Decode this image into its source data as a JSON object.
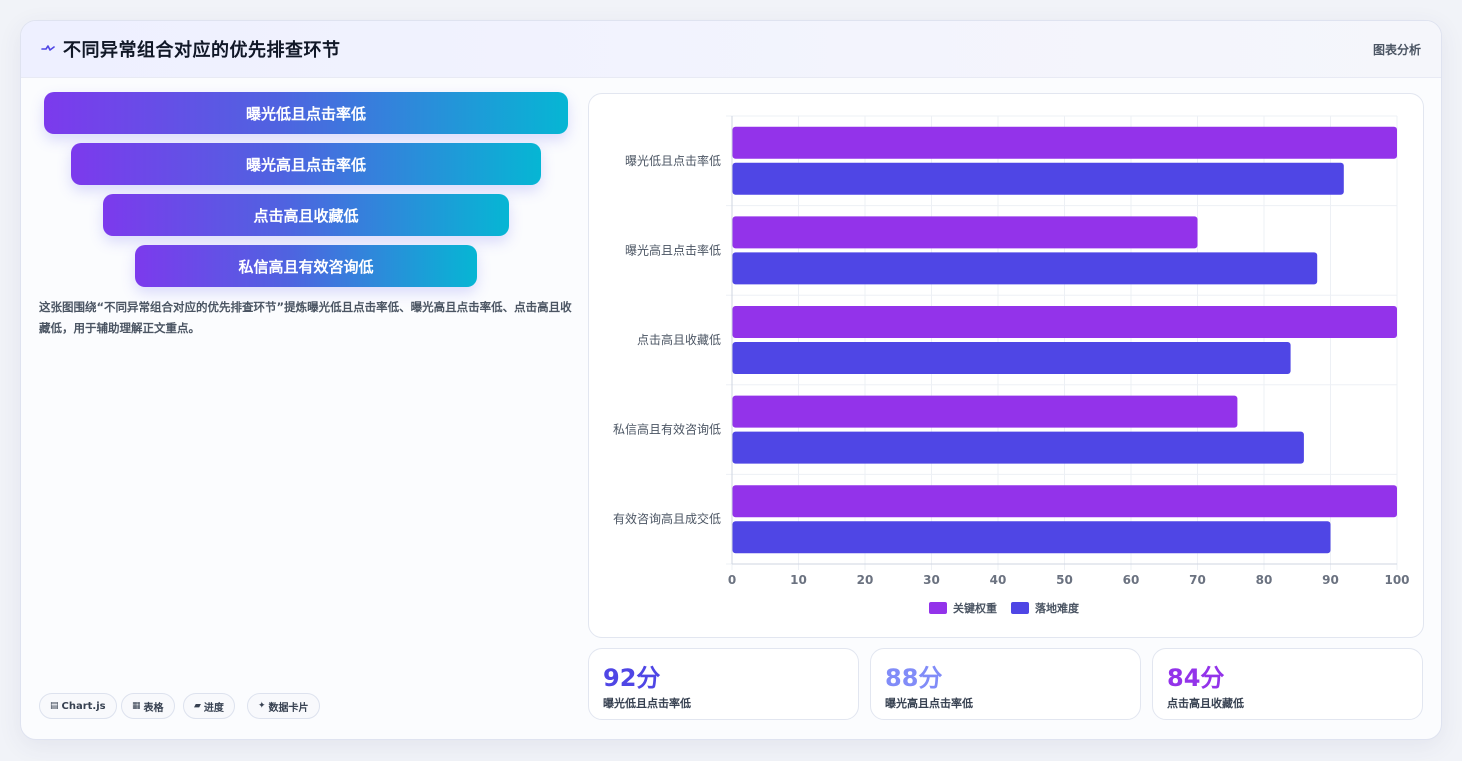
{
  "header": {
    "title": "不同异常组合对应的优先排查环节",
    "tag": "图表分析",
    "icon": "pulse-icon"
  },
  "funnel": {
    "items": [
      {
        "label": "曝光低且点击率低"
      },
      {
        "label": "曝光高且点击率低"
      },
      {
        "label": "点击高且收藏低"
      },
      {
        "label": "私信高且有效咨询低"
      }
    ]
  },
  "description": "这张图围绕“不同异常组合对应的优先排查环节”提炼曝光低且点击率低、曝光高且点击率低、点击高且收藏低，用于辅助理解正文重点。",
  "chips": [
    {
      "icon": "▤",
      "label": "Chart.js"
    },
    {
      "icon": "▦",
      "label": "表格"
    },
    {
      "icon": "▰",
      "label": "进度"
    },
    {
      "icon": "✦",
      "label": "数据卡片"
    }
  ],
  "chart_data": {
    "type": "bar",
    "orientation": "horizontal",
    "categories": [
      "曝光低且点击率低",
      "曝光高且点击率低",
      "点击高且收藏低",
      "私信高且有效咨询低",
      "有效咨询高且成交低"
    ],
    "series": [
      {
        "name": "关键权重",
        "color": "#9333ea",
        "values": [
          100,
          70,
          100,
          76,
          100
        ]
      },
      {
        "name": "落地难度",
        "color": "#4f46e5",
        "values": [
          92,
          88,
          84,
          86,
          90
        ]
      }
    ],
    "xlim": [
      0,
      100
    ],
    "xticks": [
      "0",
      "10",
      "20",
      "30",
      "40",
      "50",
      "60",
      "70",
      "80",
      "90",
      "100"
    ],
    "grid": true,
    "legend_position": "bottom"
  },
  "stats": [
    {
      "value": "92分",
      "label": "曝光低且点击率低",
      "color": "#4f46e5"
    },
    {
      "value": "88分",
      "label": "曝光高且点击率低",
      "color": "#818cf8"
    },
    {
      "value": "84分",
      "label": "点击高且收藏低",
      "color": "#9333ea"
    }
  ]
}
